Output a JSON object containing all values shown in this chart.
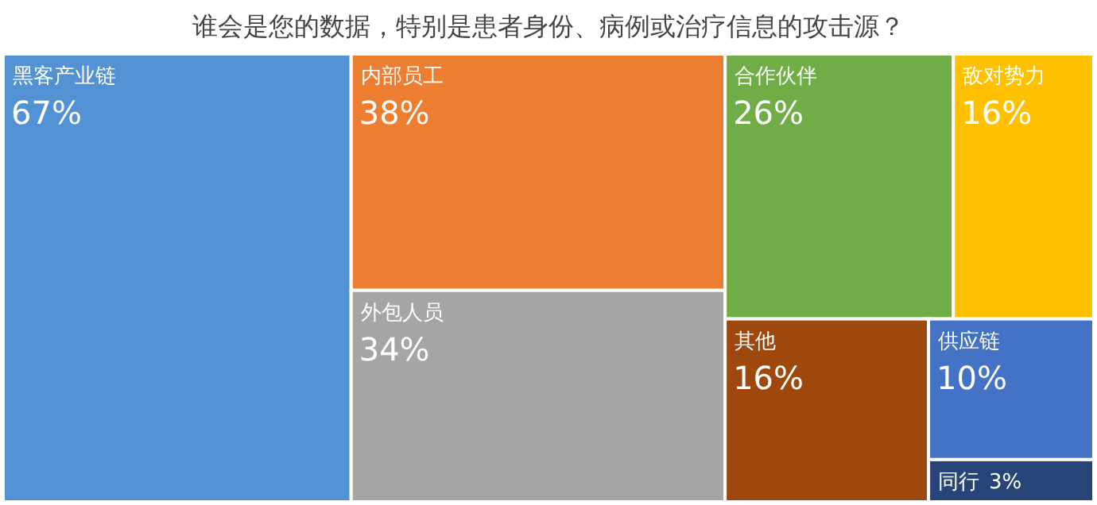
{
  "chart_data": {
    "type": "other",
    "title": "谁会是您的数据，特别是患者身份、病例或治疗信息的攻击源？",
    "categories": [
      "黑客产业链",
      "内部员工",
      "外包人员",
      "合作伙伴",
      "敌对势力",
      "其他",
      "供应链",
      "同行"
    ],
    "values": [
      67,
      38,
      34,
      26,
      16,
      16,
      10,
      3
    ],
    "colors": [
      "#5291d3",
      "#ed7d31",
      "#a5a5a5",
      "#70ad47",
      "#ffc000",
      "#9e480e",
      "#4472c4",
      "#264478"
    ],
    "value_labels": [
      "67%",
      "38%",
      "34%",
      "26%",
      "16%",
      "16%",
      "10%",
      "3%"
    ]
  }
}
